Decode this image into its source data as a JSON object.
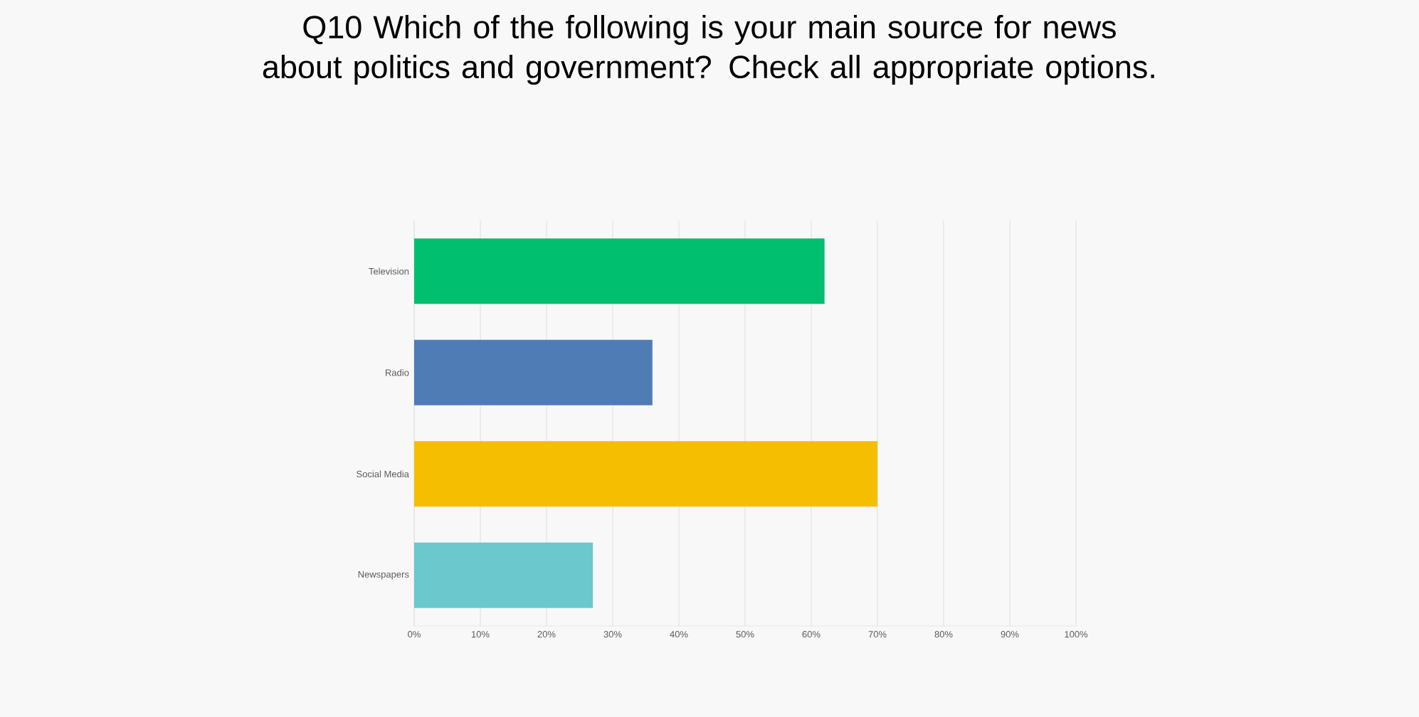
{
  "chart_data": {
    "type": "bar",
    "orientation": "horizontal",
    "title": "Q10 Which of the following is your main source for news about politics and government? Check all appropriate options.",
    "categories": [
      "Television",
      "Radio",
      "Social Media",
      "Newspapers"
    ],
    "values": [
      62,
      36,
      70,
      27
    ],
    "colors": [
      "#00bf6f",
      "#507cb6",
      "#f5be00",
      "#6bc8cd"
    ],
    "xlim": [
      0,
      100
    ],
    "xticks": [
      {
        "value": 0,
        "label": "0%"
      },
      {
        "value": 10,
        "label": "10%"
      },
      {
        "value": 20,
        "label": "20%"
      },
      {
        "value": 30,
        "label": "30%"
      },
      {
        "value": 40,
        "label": "40%"
      },
      {
        "value": 50,
        "label": "50%"
      },
      {
        "value": 60,
        "label": "60%"
      },
      {
        "value": 70,
        "label": "70%"
      },
      {
        "value": 80,
        "label": "80%"
      },
      {
        "value": 90,
        "label": "90%"
      },
      {
        "value": 100,
        "label": "100%"
      }
    ],
    "grid": "x"
  }
}
